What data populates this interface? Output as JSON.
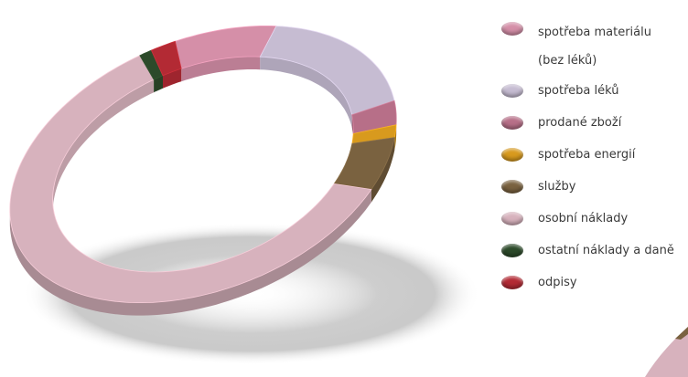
{
  "chart_data": {
    "type": "pie",
    "variant": "3d-ring",
    "title": "",
    "legend_position": "right",
    "categories": [
      "spotřeba materiálu\n(bez léků)",
      "spotřeba léků",
      "prodané zboží",
      "spotřeba energií",
      "služby",
      "osobní náklady",
      "ostatní náklady a daně",
      "odpisy"
    ],
    "values": [
      8.5,
      16.5,
      3.0,
      1.5,
      6.0,
      61.5,
      1.0,
      2.0
    ],
    "colors": [
      "#d58fa8",
      "#c6bcd2",
      "#b76f88",
      "#d89a1e",
      "#7a6240",
      "#d7b2bd",
      "#2c4a2a",
      "#b32a34"
    ]
  }
}
